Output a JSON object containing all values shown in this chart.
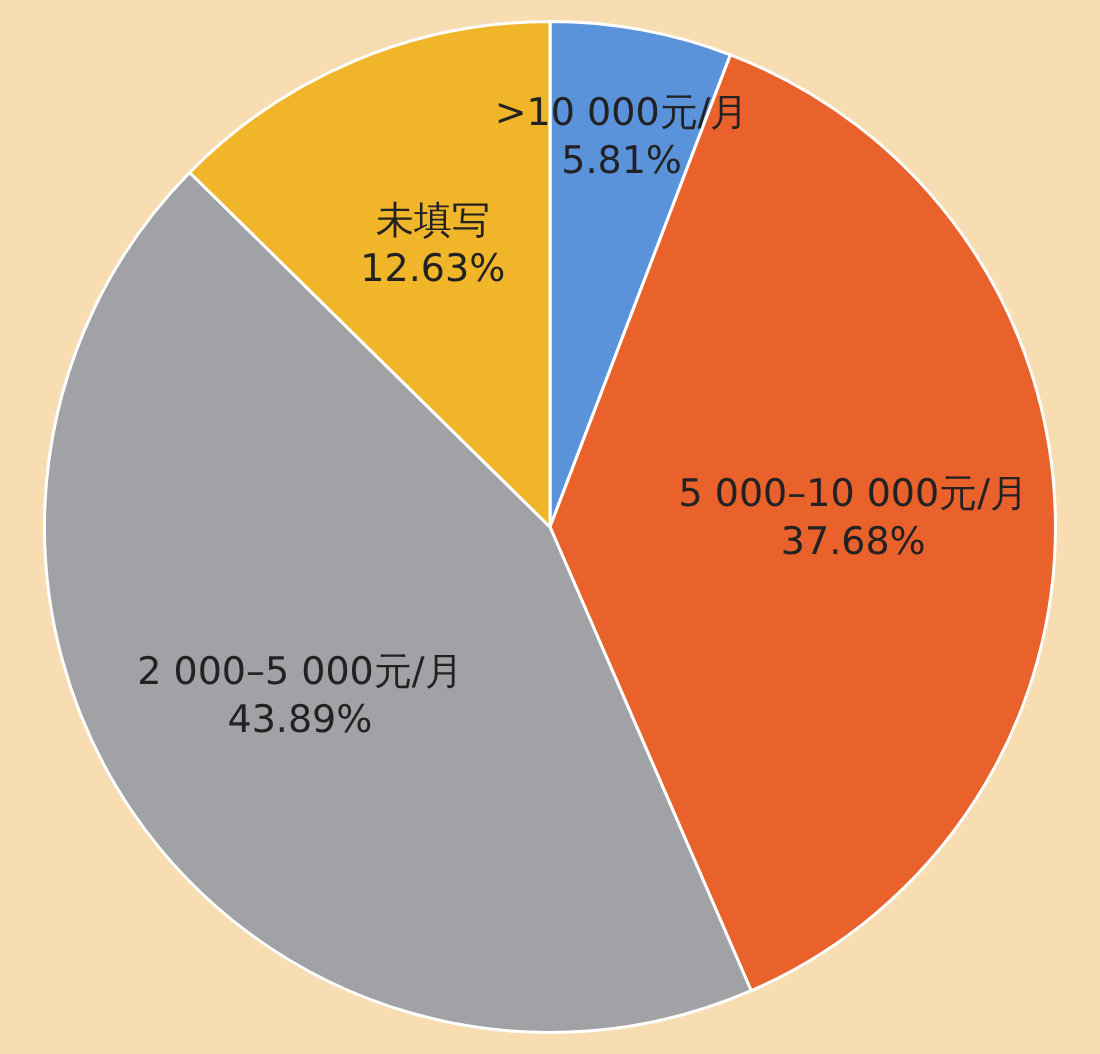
{
  "chart_data": {
    "type": "pie",
    "categories": [
      ">10 000元/月",
      "5 000–10 000元/月",
      "2 000–5 000元/月",
      "未填写"
    ],
    "values": [
      5.81,
      37.68,
      43.89,
      12.63
    ],
    "colors": [
      "#5b93db",
      "#e9622c",
      "#a1a2a6",
      "#f1b52a"
    ],
    "value_labels": [
      "5.81%",
      "37.68%",
      "43.89%",
      "12.63%"
    ],
    "legend": false
  }
}
